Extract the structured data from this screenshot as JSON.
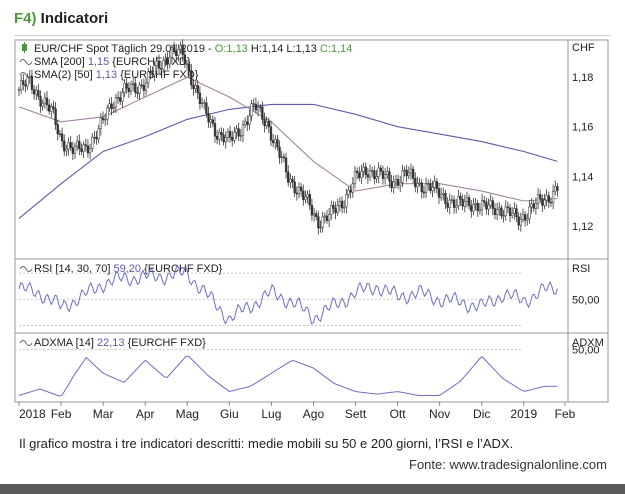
{
  "panel": {
    "code": "F4)",
    "name": "Indicatori",
    "caption": "Il grafico mostra i tre indicatori descritti: medie mobili su 50 e 200 giorni, l’RSI e l’ADX.",
    "source": "Fonte: www.tradesignalonline.com"
  },
  "colors": {
    "accent": "#4a9a3a",
    "price": "#333333",
    "sma200": "#5c5aa8",
    "sma50": "#a383a3",
    "indicator": "#6e6ec4",
    "bottom_bar": "#5a5a5a"
  },
  "chart_data": [
    {
      "type": "line",
      "subtype": "candlestick",
      "legend": [
        {
          "text_main": "EUR/CHF Spot Täglich  29.01.2019 - ",
          "o": "O:1,13",
          "h": " H:1,14",
          "l": " L:1,13",
          "c": " C:1,14",
          "icon": "candle-icon"
        },
        {
          "text_main": "SMA [200] ",
          "value": "1,15",
          "text_tail": " {EURCHF FXD}",
          "icon": "wave-icon"
        },
        {
          "text_main": "SMA(2) [50] ",
          "value": "1,13",
          "text_tail": " {EURCHF FXD}",
          "icon": "wave-icon"
        }
      ],
      "unit": "CHF",
      "ylim": [
        1.107,
        1.195
      ],
      "yticks": [
        "1,18",
        "1,16",
        "1,14",
        "1,12"
      ],
      "ytick_values": [
        1.18,
        1.16,
        1.14,
        1.12
      ],
      "xlim": [
        0,
        12.98
      ],
      "series": [
        {
          "kind": "price_close",
          "x": [
            0,
            0.25,
            0.5,
            0.8,
            1.0,
            1.3,
            1.6,
            1.9,
            2.2,
            2.5,
            2.8,
            3.0,
            3.3,
            3.6,
            3.9,
            4.1,
            4.4,
            4.7,
            5.0,
            5.3,
            5.6,
            5.9,
            6.1,
            6.4,
            6.7,
            6.9,
            7.1,
            7.4,
            7.7,
            8.0,
            8.3,
            8.6,
            8.9,
            9.2,
            9.5,
            9.8,
            10.1,
            10.4,
            10.7,
            11.0,
            11.3,
            11.6,
            11.9,
            12.2,
            12.4,
            12.6,
            12.8
          ],
          "values": [
            1.175,
            1.178,
            1.172,
            1.165,
            1.155,
            1.15,
            1.152,
            1.158,
            1.17,
            1.174,
            1.176,
            1.178,
            1.184,
            1.19,
            1.189,
            1.18,
            1.166,
            1.158,
            1.154,
            1.16,
            1.168,
            1.162,
            1.152,
            1.14,
            1.133,
            1.128,
            1.122,
            1.124,
            1.13,
            1.139,
            1.143,
            1.14,
            1.138,
            1.141,
            1.137,
            1.135,
            1.132,
            1.128,
            1.13,
            1.127,
            1.128,
            1.125,
            1.123,
            1.127,
            1.13,
            1.132,
            1.135
          ]
        },
        {
          "kind": "sma200",
          "x": [
            0,
            1,
            2,
            3,
            4,
            5,
            6,
            7,
            8,
            9,
            10,
            11,
            12,
            12.8
          ],
          "values": [
            1.123,
            1.137,
            1.15,
            1.156,
            1.163,
            1.167,
            1.169,
            1.169,
            1.165,
            1.16,
            1.157,
            1.154,
            1.15,
            1.146
          ]
        },
        {
          "kind": "sma50",
          "x": [
            0,
            1,
            2,
            3,
            4,
            5,
            6,
            7,
            8,
            9,
            10,
            11,
            12,
            12.8
          ],
          "values": [
            1.168,
            1.162,
            1.164,
            1.172,
            1.18,
            1.172,
            1.162,
            1.146,
            1.134,
            1.137,
            1.137,
            1.134,
            1.13,
            1.131
          ]
        }
      ]
    },
    {
      "type": "line",
      "legend": {
        "text_main": "RSI [14, 30, 70] ",
        "value": "59,20",
        "text_tail": " {EURCHF FXD}",
        "icon": "wave-icon"
      },
      "unit": "RSI",
      "ylim": [
        25,
        80
      ],
      "yticks": [
        "50,00"
      ],
      "ytick_values": [
        50
      ],
      "guides": [
        30,
        50,
        70
      ],
      "xlim": [
        0,
        12.98
      ],
      "series": [
        {
          "name": "RSI",
          "x": [
            0,
            0.5,
            1,
            1.5,
            2,
            2.5,
            3,
            3.5,
            4,
            4.5,
            5,
            5.5,
            6,
            6.5,
            7,
            7.5,
            8,
            8.5,
            9,
            9.5,
            10,
            10.5,
            11,
            11.5,
            12,
            12.5,
            12.8
          ],
          "values": [
            58,
            55,
            44,
            52,
            62,
            66,
            67,
            68,
            70,
            52,
            35,
            45,
            55,
            48,
            36,
            45,
            55,
            60,
            52,
            55,
            50,
            48,
            44,
            54,
            49,
            57,
            59
          ]
        }
      ]
    },
    {
      "type": "line",
      "legend": {
        "text_main": "ADXMA [14] ",
        "value": "22,13",
        "text_tail": " {EURCHF FXD}",
        "icon": "wave-icon"
      },
      "unit": "ADXM",
      "ylim": [
        10,
        62
      ],
      "yticks": [
        "50,00"
      ],
      "ytick_values": [
        50
      ],
      "xlim": [
        0,
        12.98
      ],
      "xticks": [
        "2018",
        "Feb",
        "Mar",
        "Apr",
        "Mag",
        "Giu",
        "Lug",
        "Ago",
        "Sett",
        "Ott",
        "Nov",
        "Dic",
        "2019",
        "Feb"
      ],
      "xtick_values": [
        0,
        1,
        2,
        3,
        4,
        5,
        6,
        7,
        8,
        9,
        10,
        11,
        12,
        12.98
      ],
      "series": [
        {
          "name": "ADXMA",
          "x": [
            0,
            0.5,
            1,
            1.3,
            1.6,
            2,
            2.5,
            3,
            3.5,
            4,
            4.5,
            5,
            5.5,
            6,
            6.5,
            7,
            7.5,
            8,
            8.5,
            9,
            9.5,
            10,
            10.5,
            11,
            11.5,
            12,
            12.5,
            12.8
          ],
          "values": [
            15,
            20,
            14,
            30,
            44,
            32,
            25,
            42,
            28,
            46,
            30,
            18,
            22,
            32,
            42,
            36,
            24,
            18,
            16,
            18,
            15,
            15,
            26,
            45,
            28,
            18,
            22,
            22
          ]
        }
      ]
    }
  ]
}
